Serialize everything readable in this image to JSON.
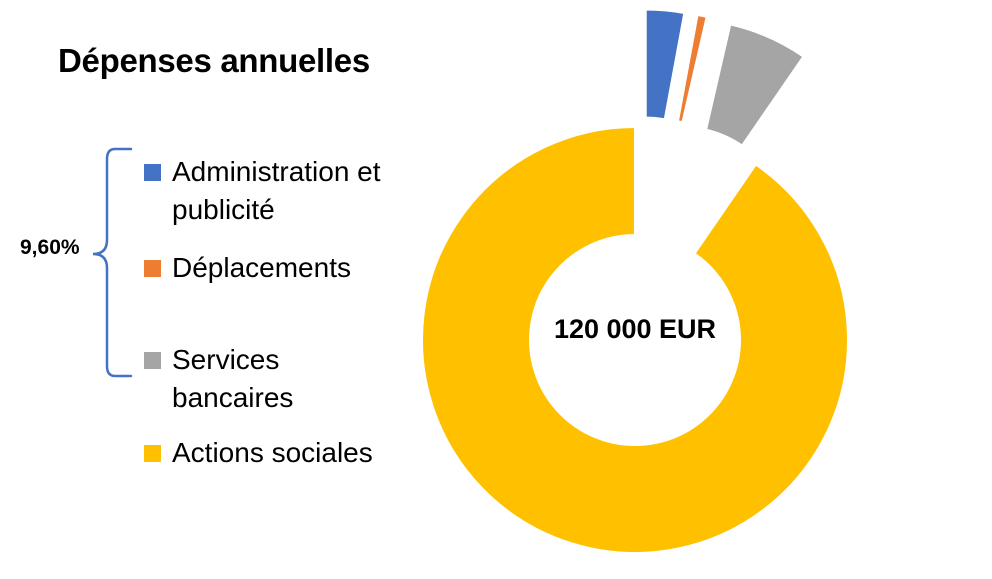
{
  "chart_data": {
    "type": "pie",
    "title": "Dépenses annuelles",
    "center_label": "120 000 EUR",
    "bracket_label": "9,60%",
    "categories": [
      "Administration et publicité",
      "Déplacements",
      "Services bancaires",
      "Actions sociales"
    ],
    "values": [
      2.9,
      0.7,
      6.0,
      90.4
    ],
    "colors": [
      "#4472C4",
      "#ED7D31",
      "#A5A5A5",
      "#FFC000"
    ],
    "exploded": [
      true,
      true,
      true,
      false
    ],
    "legend_position": "left"
  }
}
